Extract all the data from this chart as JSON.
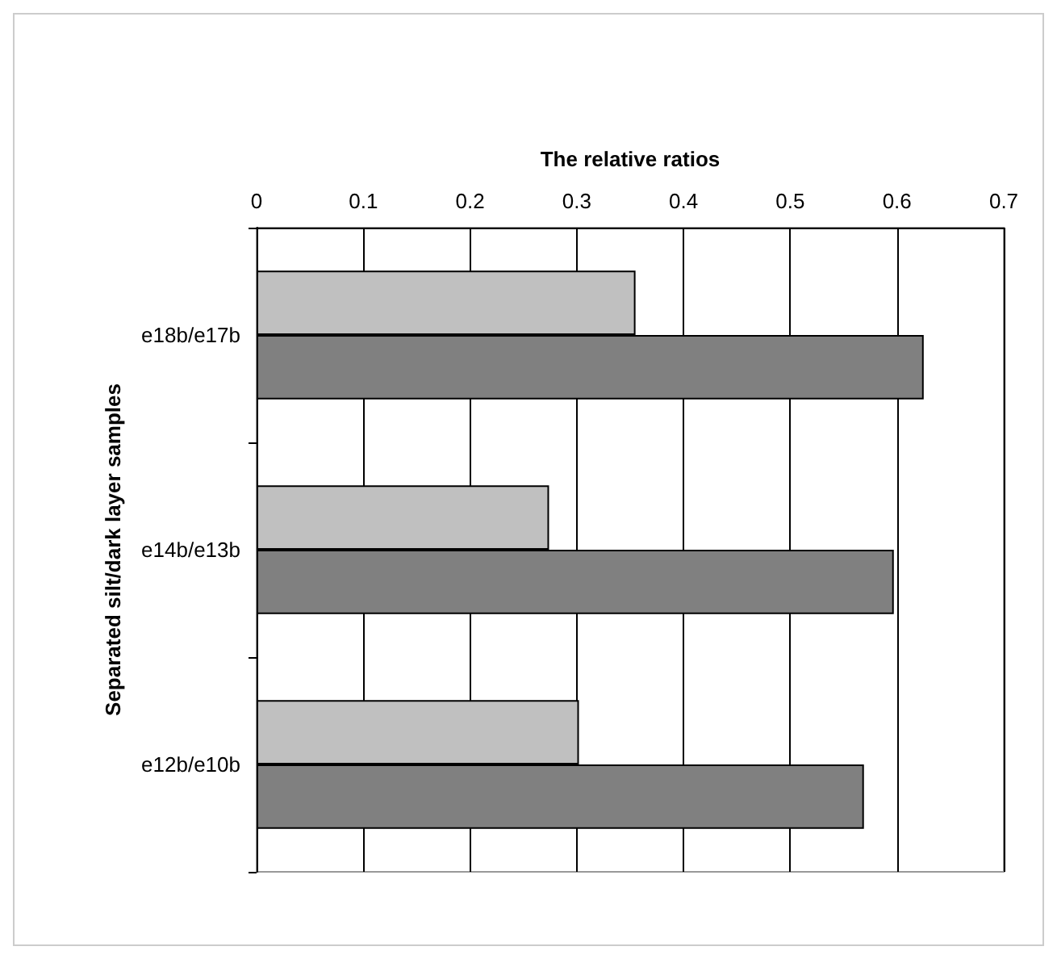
{
  "chart_data": {
    "type": "bar",
    "orientation": "horizontal",
    "xlabel": "The relative ratios",
    "ylabel": "Separated silt/dark layer samples",
    "categories": [
      "e18b/e17b",
      "e14b/e13b",
      "e12b/e10b"
    ],
    "series": [
      {
        "color": "#c0c0c0",
        "values": [
          0.355,
          0.274,
          0.302
        ]
      },
      {
        "color": "#808080",
        "values": [
          0.625,
          0.597,
          0.569
        ]
      }
    ],
    "xlim": [
      0,
      0.7
    ],
    "xticks": [
      0,
      0.1,
      0.2,
      0.3,
      0.4,
      0.5,
      0.6,
      0.7
    ],
    "grid": "x"
  }
}
